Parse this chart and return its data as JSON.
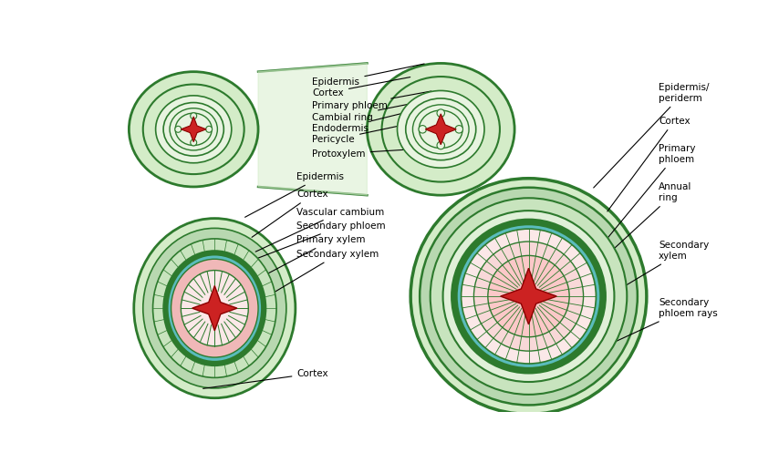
{
  "bg_color": "#ffffff",
  "light_green": "#d4ecc8",
  "dark_green": "#2d7a2d",
  "green2": "#b8d8b0",
  "green3": "#c8e4be",
  "pink_fill": "#f0b8b8",
  "light_pink": "#fbe8e8",
  "red_fill": "#cc2222",
  "dark_red": "#8b0000",
  "teal": "#5abcbc",
  "teal_light": "#7ad4d4",
  "white_green": "#e8f4e0",
  "label_fontsize": 7.5,
  "top_labels": [
    "Epidermis",
    "Cortex",
    "Primary phloem",
    "Cambial ring",
    "Endodermis",
    "Pericycle",
    "Protoxylem"
  ],
  "bottom_left_labels": [
    "Epidermis",
    "Cortex",
    "Vascular cambium",
    "Secondary phloem",
    "Primary xylem",
    "Secondary xylem",
    "Cortex"
  ],
  "bottom_right_labels": [
    "Epidermis/\nperiderm",
    "Cortex",
    "Primary\nphloem",
    "Annual\nring",
    "Secondary\nxylem",
    "Secondary\nphloem rays"
  ]
}
